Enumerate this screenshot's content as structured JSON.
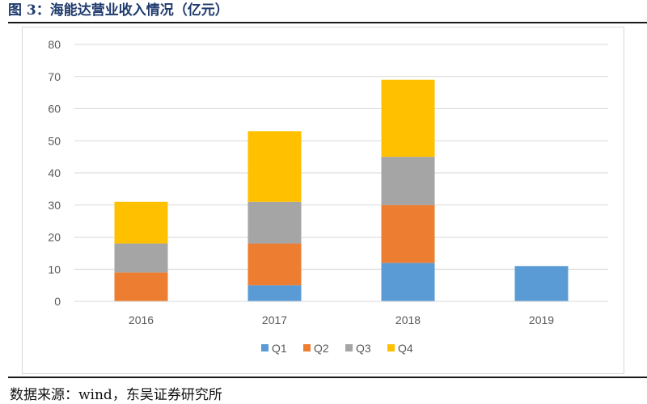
{
  "figure": {
    "title": "图 3：海能达营业收入情况（亿元）",
    "source": "数据来源：wind，东吴证券研究所"
  },
  "chart_data": {
    "type": "bar",
    "stacked": true,
    "categories": [
      "2016",
      "2017",
      "2018",
      "2019"
    ],
    "series": [
      {
        "name": "Q1",
        "color": "#5b9bd5",
        "values": [
          0,
          5,
          12,
          11
        ]
      },
      {
        "name": "Q2",
        "color": "#ed7d31",
        "values": [
          9,
          13,
          18,
          0
        ]
      },
      {
        "name": "Q3",
        "color": "#a5a5a5",
        "values": [
          9,
          13,
          15,
          0
        ]
      },
      {
        "name": "Q4",
        "color": "#ffc000",
        "values": [
          13,
          22,
          24,
          0
        ]
      }
    ],
    "yticks": [
      "0",
      "10",
      "20",
      "30",
      "40",
      "50",
      "60",
      "70",
      "80"
    ],
    "ylim": [
      0,
      80
    ],
    "grid": true,
    "legend_position": "bottom",
    "title": "",
    "xlabel": "",
    "ylabel": ""
  }
}
